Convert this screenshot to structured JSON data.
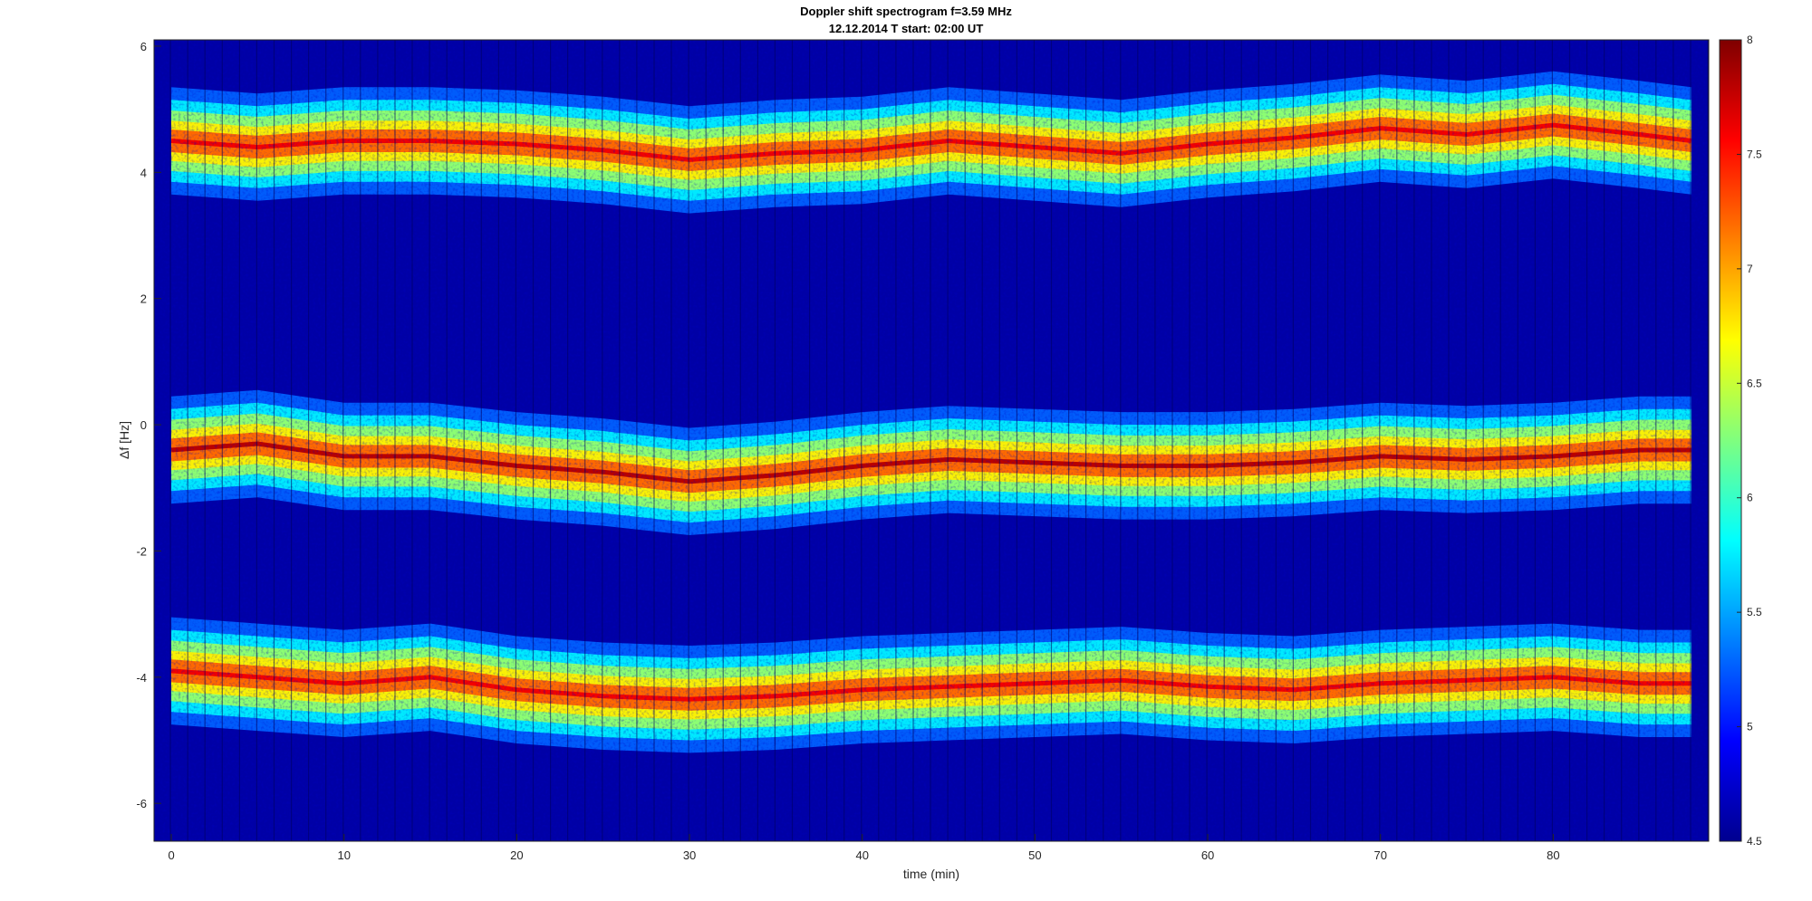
{
  "chart_data": {
    "type": "heatmap",
    "title": "Doppler shift spectrogram f=3.59 MHz",
    "subtitle": "12.12.2014   T start: 02:00 UT",
    "xlabel": "time (min)",
    "ylabel": "Δf [Hz]",
    "xlim": [
      -1,
      89
    ],
    "ylim": [
      -6.6,
      6.1
    ],
    "xticks": [
      0,
      10,
      20,
      30,
      40,
      50,
      60,
      70,
      80
    ],
    "xtick_labels": [
      "0",
      "10",
      "20",
      "30",
      "40",
      "50",
      "60",
      "70",
      "80"
    ],
    "yticks": [
      6,
      4,
      2,
      0,
      -2,
      -4,
      -6
    ],
    "ytick_labels": [
      "6",
      "4",
      "2",
      "0",
      "-2",
      "-4",
      "-6"
    ],
    "colormap": "jet",
    "color_range": [
      4.5,
      8
    ],
    "colorbar_ticks": [
      8,
      7.5,
      7,
      6.5,
      6,
      5.5,
      5,
      4.5
    ],
    "colorbar_tick_labels": [
      "8",
      "7.5",
      "7",
      "6.5",
      "6",
      "5.5",
      "5",
      "4.5"
    ],
    "grid": false,
    "series": [
      {
        "band": "upper",
        "x": [
          0,
          5,
          10,
          15,
          20,
          25,
          30,
          35,
          40,
          45,
          50,
          55,
          60,
          65,
          70,
          75,
          80,
          85,
          88
        ],
        "y": [
          4.5,
          4.4,
          4.5,
          4.5,
          4.45,
          4.35,
          4.2,
          4.3,
          4.35,
          4.5,
          4.4,
          4.3,
          4.45,
          4.55,
          4.7,
          4.6,
          4.75,
          4.6,
          4.5
        ]
      },
      {
        "band": "middle",
        "x": [
          0,
          5,
          10,
          15,
          20,
          25,
          30,
          35,
          40,
          45,
          50,
          55,
          60,
          65,
          70,
          75,
          80,
          85,
          88
        ],
        "y": [
          -0.4,
          -0.3,
          -0.5,
          -0.5,
          -0.65,
          -0.75,
          -0.9,
          -0.8,
          -0.65,
          -0.55,
          -0.6,
          -0.65,
          -0.65,
          -0.6,
          -0.5,
          -0.55,
          -0.5,
          -0.4,
          -0.4
        ]
      },
      {
        "band": "lower",
        "x": [
          0,
          5,
          10,
          15,
          20,
          25,
          30,
          35,
          40,
          45,
          50,
          55,
          60,
          65,
          70,
          75,
          80,
          85,
          88
        ],
        "y": [
          -3.9,
          -4.0,
          -4.1,
          -4.0,
          -4.2,
          -4.3,
          -4.35,
          -4.3,
          -4.2,
          -4.15,
          -4.1,
          -4.05,
          -4.15,
          -4.2,
          -4.1,
          -4.05,
          -4.0,
          -4.1,
          -4.1
        ]
      }
    ],
    "band_peak_level": [
      7.6,
      7.8,
      7.6
    ]
  }
}
